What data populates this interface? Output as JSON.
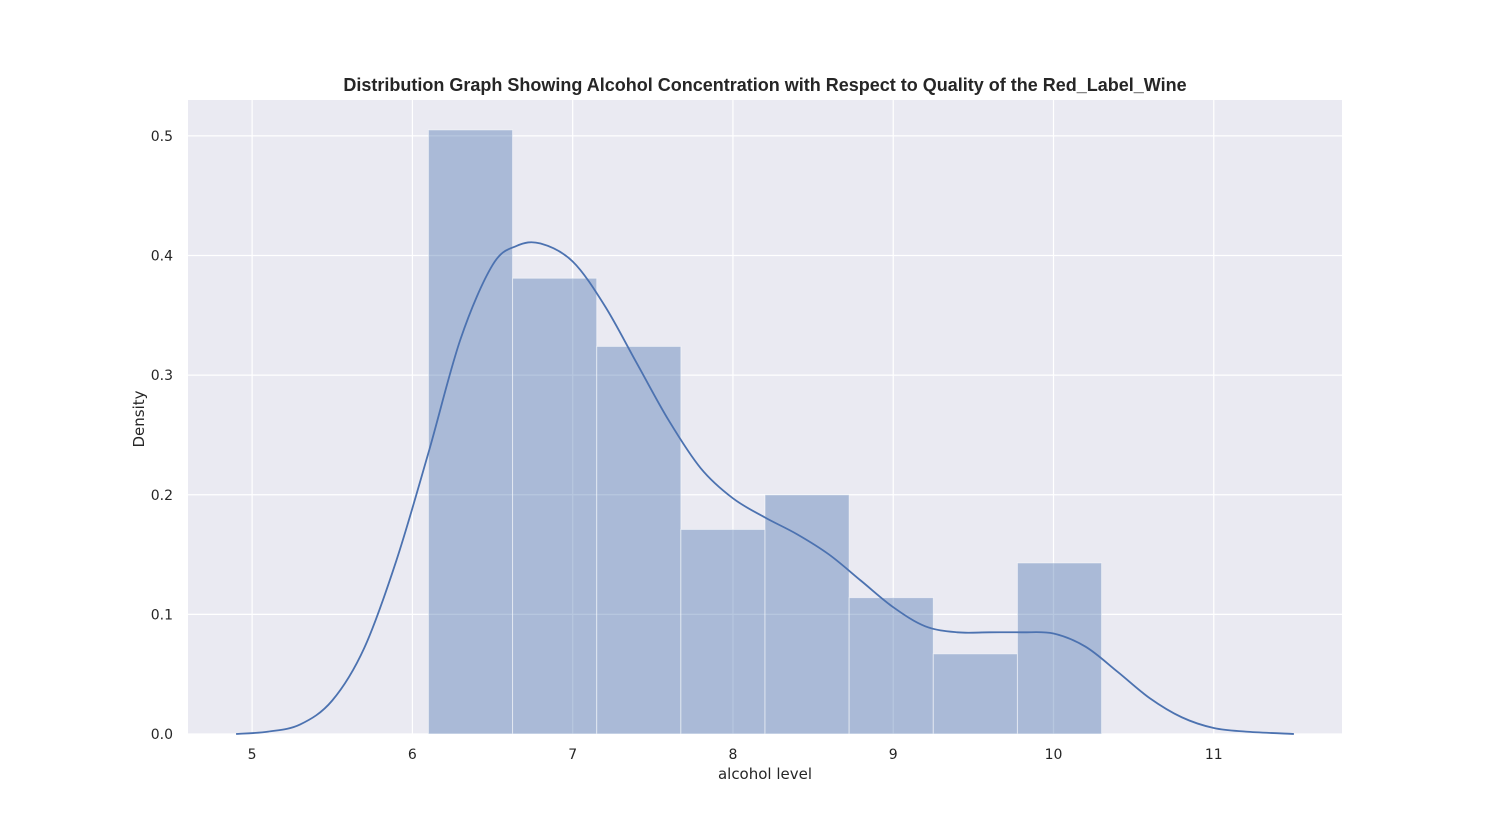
{
  "chart_data": {
    "type": "bar",
    "title": "Distribution Graph Showing Alcohol Concentration with Respect to Quality of the Red_Label_Wine",
    "xlabel": "alcohol level",
    "ylabel": "Density",
    "xlim": [
      4.6,
      11.8
    ],
    "ylim": [
      0,
      0.53
    ],
    "xticks": [
      5,
      6,
      7,
      8,
      9,
      10,
      11
    ],
    "yticks": [
      0.0,
      0.1,
      0.2,
      0.3,
      0.4,
      0.5
    ],
    "xtick_labels": [
      "5",
      "6",
      "7",
      "8",
      "9",
      "10",
      "11"
    ],
    "ytick_labels": [
      "0.0",
      "0.1",
      "0.2",
      "0.3",
      "0.4",
      "0.5"
    ],
    "grid": true,
    "legend": "none",
    "histogram": {
      "bin_edges": [
        6.1,
        6.625,
        7.15,
        7.675,
        8.2,
        8.725,
        9.25,
        9.775,
        10.3
      ],
      "densities": [
        0.505,
        0.381,
        0.324,
        0.171,
        0.2,
        0.114,
        0.067,
        0.143
      ]
    },
    "kde": {
      "x": [
        4.9,
        5.1,
        5.3,
        5.5,
        5.7,
        5.9,
        6.1,
        6.3,
        6.5,
        6.65,
        6.8,
        7.0,
        7.2,
        7.4,
        7.6,
        7.8,
        8.0,
        8.2,
        8.4,
        8.6,
        8.8,
        9.0,
        9.2,
        9.4,
        9.6,
        9.8,
        10.0,
        10.2,
        10.4,
        10.6,
        10.8,
        11.0,
        11.2,
        11.5
      ],
      "y": [
        0.0,
        0.002,
        0.008,
        0.028,
        0.072,
        0.145,
        0.235,
        0.33,
        0.392,
        0.408,
        0.41,
        0.395,
        0.358,
        0.31,
        0.262,
        0.222,
        0.197,
        0.181,
        0.167,
        0.15,
        0.128,
        0.106,
        0.09,
        0.085,
        0.085,
        0.085,
        0.084,
        0.073,
        0.052,
        0.03,
        0.014,
        0.005,
        0.002,
        0.0
      ]
    },
    "colors": {
      "background": "#eaeaf2",
      "grid": "#ffffff",
      "bar_fill": "#4c72b0",
      "bar_opacity": 0.4,
      "line": "#4c72b0"
    }
  }
}
